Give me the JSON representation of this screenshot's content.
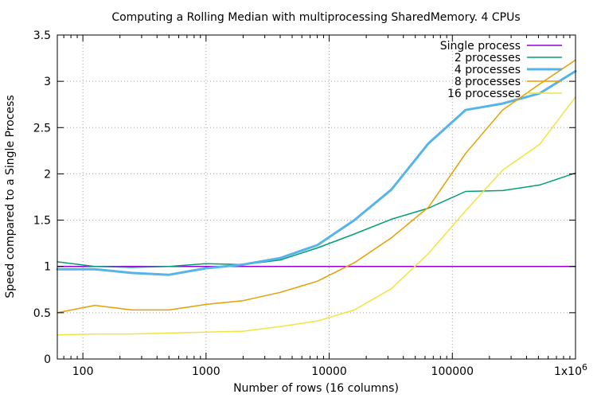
{
  "chart_data": {
    "type": "line",
    "title": "Computing a Rolling Median with multiprocessing SharedMemory. 4 CPUs",
    "xlabel": "Number of rows (16 columns)",
    "ylabel": "Speed compared to a Single Process",
    "xscale": "log",
    "xlim": [
      62,
      1000000
    ],
    "ylim": [
      0,
      3.5
    ],
    "yticks": [
      0,
      0.5,
      1,
      1.5,
      2,
      2.5,
      3,
      3.5
    ],
    "ytick_labels": [
      "0",
      "0.5",
      "1",
      "1.5",
      "2",
      "2.5",
      "3",
      "3.5"
    ],
    "xticks": [
      100,
      1000,
      10000,
      100000,
      1000000
    ],
    "xtick_labels": [
      "100",
      "1000",
      "10000",
      "100000",
      "1x10"
    ],
    "xtick_superscript": "6",
    "grid": true,
    "legend_position": "top-right",
    "series": [
      {
        "name": "Single process",
        "color": "#9400d3",
        "x": [
          62,
          1000000
        ],
        "y": [
          1.0,
          1.0
        ]
      },
      {
        "name": "2 processes",
        "color": "#009e73",
        "x": [
          62,
          125,
          250,
          500,
          1000,
          2000,
          4000,
          8000,
          16000,
          32000,
          64000,
          128000,
          256000,
          512000,
          1000000
        ],
        "y": [
          1.05,
          1.0,
          0.99,
          1.0,
          1.03,
          1.02,
          1.07,
          1.2,
          1.35,
          1.51,
          1.63,
          1.81,
          1.82,
          1.88,
          2.01
        ]
      },
      {
        "name": "4 processes",
        "color": "#56b4e9",
        "x": [
          62,
          125,
          250,
          500,
          1000,
          2000,
          4000,
          8000,
          16000,
          32000,
          64000,
          128000,
          256000,
          512000,
          1000000
        ],
        "y": [
          0.97,
          0.97,
          0.93,
          0.91,
          0.98,
          1.02,
          1.09,
          1.23,
          1.5,
          1.83,
          2.33,
          2.69,
          2.76,
          2.87,
          3.11
        ]
      },
      {
        "name": "8 processes",
        "color": "#e69f00",
        "x": [
          62,
          125,
          250,
          500,
          1000,
          2000,
          4000,
          8000,
          16000,
          32000,
          64000,
          128000,
          256000,
          512000,
          1000000
        ],
        "y": [
          0.5,
          0.58,
          0.53,
          0.53,
          0.59,
          0.63,
          0.72,
          0.84,
          1.04,
          1.31,
          1.64,
          2.22,
          2.69,
          2.97,
          3.23
        ]
      },
      {
        "name": "16 processes",
        "color": "#f0e442",
        "x": [
          62,
          125,
          250,
          500,
          1000,
          2000,
          4000,
          8000,
          16000,
          32000,
          64000,
          128000,
          256000,
          512000,
          1000000
        ],
        "y": [
          0.26,
          0.27,
          0.27,
          0.28,
          0.29,
          0.3,
          0.35,
          0.41,
          0.53,
          0.76,
          1.14,
          1.6,
          2.04,
          2.32,
          2.83
        ]
      }
    ]
  }
}
